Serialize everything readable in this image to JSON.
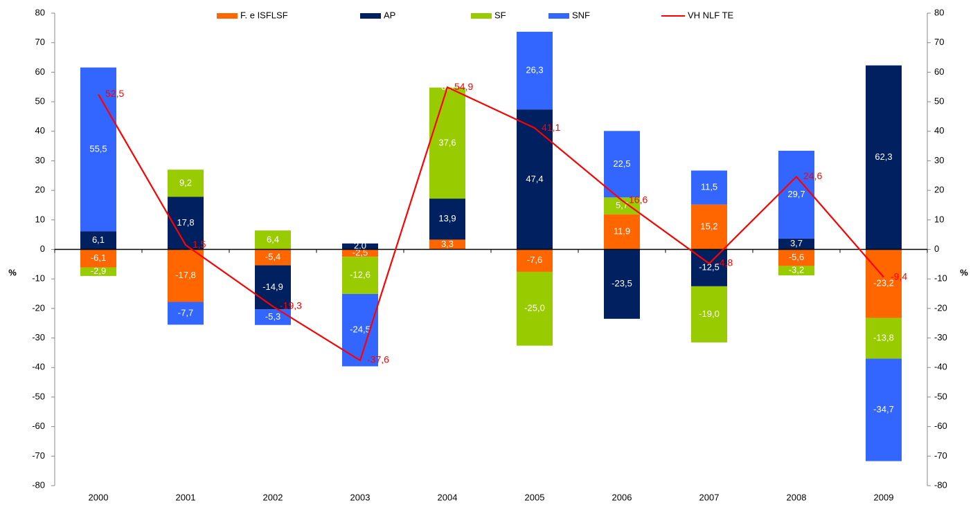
{
  "chart_data": {
    "type": "bar",
    "stacked": true,
    "legend": "top",
    "grid": false,
    "y_label": "%",
    "y2_label": "%",
    "categories": [
      "2000",
      "2001",
      "2002",
      "2003",
      "2004",
      "2005",
      "2006",
      "2007",
      "2008",
      "2009"
    ],
    "series": [
      {
        "name": "F. e ISFLSF",
        "color": "#ff6600",
        "values": [
          -6.1,
          -17.8,
          -5.4,
          -2.5,
          3.3,
          -7.6,
          11.9,
          15.2,
          -5.6,
          -23.2
        ],
        "value_labels": [
          "-6,1",
          "-17,8",
          "-5,4",
          "-2,5",
          "3,3",
          "-7,6",
          "11,9",
          "15,2",
          "-5,6",
          "-23,2"
        ]
      },
      {
        "name": "AP",
        "color": "#002060",
        "values": [
          6.1,
          17.8,
          -14.9,
          2.0,
          13.9,
          47.4,
          -23.5,
          -12.5,
          3.7,
          62.3
        ],
        "value_labels": [
          "6,1",
          "17,8",
          "-14,9",
          "2,0",
          "13,9",
          "47,4",
          "-23,5",
          "-12,5",
          "3,7",
          "62,3"
        ]
      },
      {
        "name": "SF",
        "color": "#99cc00",
        "values": [
          -2.9,
          9.2,
          6.4,
          -12.6,
          37.6,
          -25.0,
          5.7,
          -19.0,
          -3.2,
          -13.8
        ],
        "value_labels": [
          "-2,9",
          "9,2",
          "6,4",
          "-12,6",
          "37,6",
          "-25,0",
          "5,7",
          "-19,0",
          "-3,2",
          "-13,8"
        ]
      },
      {
        "name": "SNF",
        "color": "#3366ff",
        "values": [
          55.5,
          -7.7,
          -5.3,
          -24.5,
          0.0,
          26.3,
          22.5,
          11.5,
          29.7,
          -34.7
        ],
        "value_labels": [
          "55,5",
          "-7,7",
          "-5,3",
          "-24,5",
          "0,0",
          "26,3",
          "22,5",
          "11,5",
          "29,7",
          "-34,7"
        ]
      },
      {
        "name": "VH NLF TE",
        "type": "line",
        "color": "#ff0000",
        "values": [
          52.5,
          1.5,
          -19.3,
          -37.6,
          54.9,
          41.1,
          16.6,
          -4.8,
          24.6,
          -9.4
        ],
        "value_labels": [
          "52,5",
          "1,5",
          "-19,3",
          "-37,6",
          "54,9",
          "41,1",
          "16,6",
          "-4,8",
          "24,6",
          "-9,4"
        ]
      }
    ],
    "ylim": [
      -80,
      80
    ],
    "yticks": [
      -80,
      -70,
      -60,
      -50,
      -40,
      -30,
      -20,
      -10,
      0,
      10,
      20,
      30,
      40,
      50,
      60,
      70,
      80
    ],
    "y2lim": [
      -80,
      80
    ],
    "y2ticks": [
      -80,
      -70,
      -60,
      -50,
      -40,
      -30,
      -20,
      -10,
      0,
      10,
      20,
      30,
      40,
      50,
      60,
      70,
      80
    ]
  }
}
